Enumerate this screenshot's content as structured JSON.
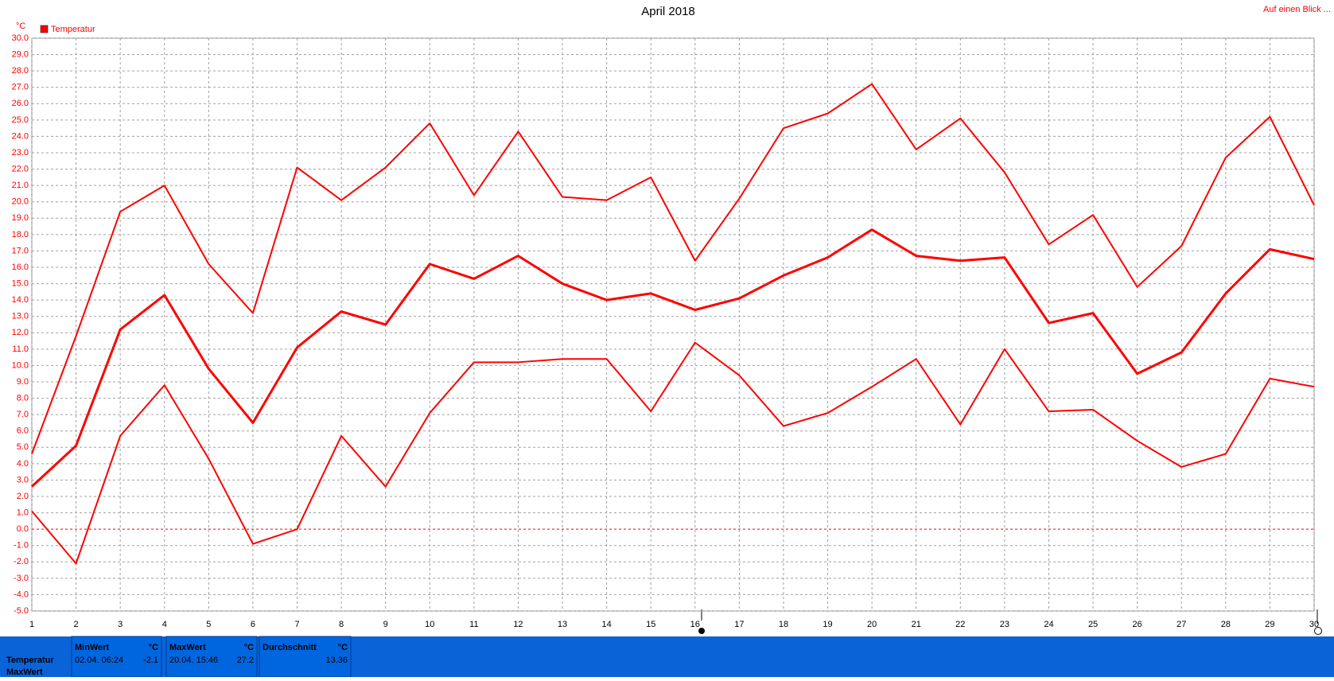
{
  "chart_data": {
    "type": "line",
    "title": "April 2018",
    "y_unit": "°C",
    "link": "Auf einen Blick ...",
    "x": [
      1,
      2,
      3,
      4,
      5,
      6,
      7,
      8,
      9,
      10,
      11,
      12,
      13,
      14,
      15,
      16,
      17,
      18,
      19,
      20,
      21,
      22,
      23,
      24,
      25,
      26,
      27,
      28,
      29,
      30
    ],
    "series": [
      {
        "name": "Temperatur",
        "color": "#ff0000",
        "values": [
          2.6,
          5.1,
          12.2,
          14.3,
          9.8,
          6.5,
          11.1,
          13.3,
          12.5,
          16.2,
          15.3,
          16.7,
          15.0,
          14.0,
          14.4,
          13.4,
          14.1,
          15.5,
          16.6,
          18.3,
          16.7,
          16.4,
          16.6,
          12.6,
          13.2,
          9.5,
          10.8,
          14.4,
          17.1,
          16.5
        ],
        "high": [
          4.6,
          11.8,
          19.4,
          21.0,
          16.2,
          13.2,
          22.1,
          20.1,
          22.1,
          24.8,
          20.4,
          24.3,
          20.3,
          20.1,
          21.5,
          16.4,
          20.2,
          24.5,
          25.4,
          27.2,
          23.2,
          25.1,
          21.8,
          17.4,
          19.2,
          14.8,
          17.3,
          22.7,
          25.2,
          19.8
        ],
        "low": [
          1.1,
          -2.1,
          5.7,
          8.8,
          4.3,
          -0.9,
          0.0,
          5.7,
          2.6,
          7.1,
          10.2,
          10.2,
          10.4,
          10.4,
          7.2,
          11.4,
          9.4,
          6.3,
          7.1,
          8.7,
          10.4,
          6.4,
          11.0,
          7.2,
          7.3,
          5.4,
          3.8,
          4.6,
          9.2,
          8.7
        ]
      }
    ],
    "xlim": [
      1,
      30
    ],
    "xticks": [
      1,
      2,
      3,
      4,
      5,
      6,
      7,
      8,
      9,
      10,
      11,
      12,
      13,
      14,
      15,
      16,
      17,
      18,
      19,
      20,
      21,
      22,
      23,
      24,
      25,
      26,
      27,
      28,
      29,
      30
    ],
    "ylim": [
      -5,
      30
    ],
    "yticks": [
      {
        "value": -5,
        "label": "-5.0"
      },
      {
        "value": -4,
        "label": "-4.0"
      },
      {
        "value": -3,
        "label": "-3.0"
      },
      {
        "value": -2,
        "label": "-2.0"
      },
      {
        "value": -1,
        "label": "-1.0"
      },
      {
        "value": 0,
        "label": "0.0"
      },
      {
        "value": 1,
        "label": "1.0"
      },
      {
        "value": 2,
        "label": "2.0"
      },
      {
        "value": 3,
        "label": "3.0"
      },
      {
        "value": 4,
        "label": "4.0"
      },
      {
        "value": 5,
        "label": "5.0"
      },
      {
        "value": 6,
        "label": "6.0"
      },
      {
        "value": 7,
        "label": "7.0"
      },
      {
        "value": 8,
        "label": "8.0"
      },
      {
        "value": 9,
        "label": "9.0"
      },
      {
        "value": 10,
        "label": "10.0"
      },
      {
        "value": 11,
        "label": "11.0"
      },
      {
        "value": 12,
        "label": "12.0"
      },
      {
        "value": 13,
        "label": "13.0"
      },
      {
        "value": 14,
        "label": "14.0"
      },
      {
        "value": 15,
        "label": "15.0"
      },
      {
        "value": 16,
        "label": "16.0"
      },
      {
        "value": 17,
        "label": "17.0"
      },
      {
        "value": 18,
        "label": "18.0"
      },
      {
        "value": 19,
        "label": "19.0"
      },
      {
        "value": 20,
        "label": "20.0"
      },
      {
        "value": 21,
        "label": "21.0"
      },
      {
        "value": 22,
        "label": "22.0"
      },
      {
        "value": 23,
        "label": "23.0"
      },
      {
        "value": 24,
        "label": "24.0"
      },
      {
        "value": 25,
        "label": "25.0"
      },
      {
        "value": 26,
        "label": "26.0"
      },
      {
        "value": 27,
        "label": "27.0"
      },
      {
        "value": 28,
        "label": "28.0"
      },
      {
        "value": 29,
        "label": "29.0"
      },
      {
        "value": 30,
        "label": "30.0"
      }
    ],
    "grid": true
  },
  "summary": {
    "row_labels": [
      "Temperatur",
      "MaxWert"
    ],
    "columns": [
      {
        "header": "MinWert",
        "unit": "°C",
        "time": "02.04.  06:24",
        "value": -2.1
      },
      {
        "header": "MaxWert",
        "unit": "°C",
        "time": "20.04.  15:46",
        "value": 27.2
      },
      {
        "header": "Durchschnitt",
        "unit": "°C",
        "value": 13.36
      }
    ]
  }
}
